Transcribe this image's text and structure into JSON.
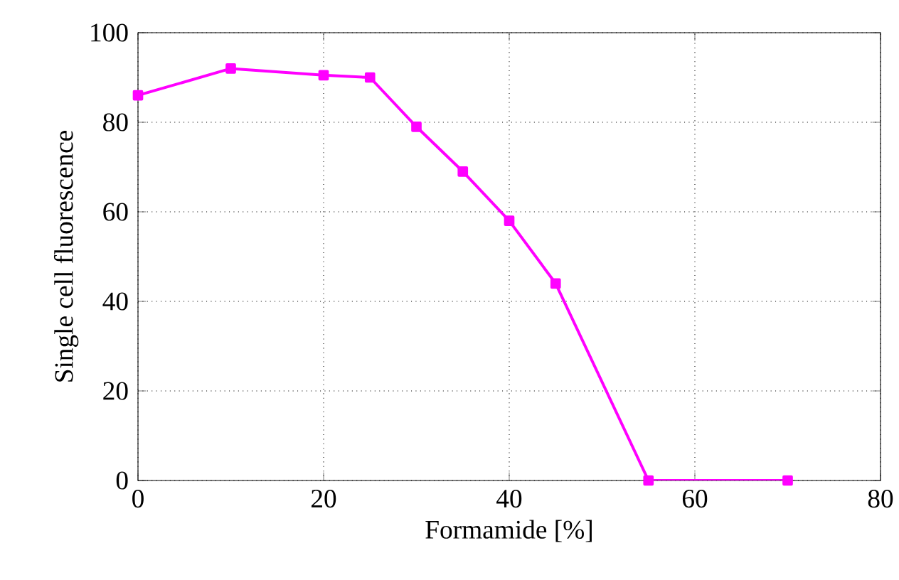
{
  "chart_data": {
    "type": "line",
    "xlabel": "Formamide [%]",
    "ylabel": "Single cell fluorescence",
    "x": [
      0,
      10,
      20,
      25,
      30,
      35,
      40,
      45,
      55,
      70
    ],
    "series": [
      {
        "color": "#ff00ff",
        "values": [
          86,
          92,
          90.5,
          90,
          79,
          69,
          58,
          44,
          0,
          0
        ]
      }
    ],
    "xlim": [
      0,
      80
    ],
    "ylim": [
      0,
      100
    ],
    "xticks": [
      0,
      20,
      40,
      60,
      80
    ],
    "yticks": [
      0,
      20,
      40,
      60,
      80,
      100
    ],
    "grid": true,
    "marker": "square",
    "line_style": "solid"
  }
}
